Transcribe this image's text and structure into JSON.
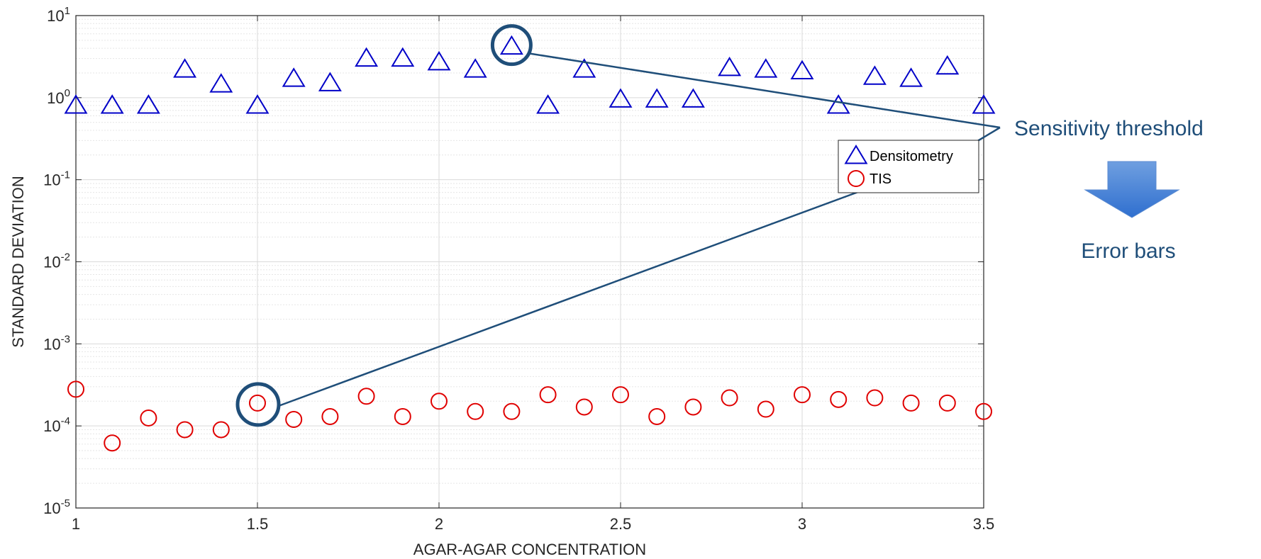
{
  "chart_data": {
    "type": "scatter",
    "xlabel": "AGAR-AGAR CONCENTRATION",
    "ylabel": "STANDARD DEVIATION",
    "xlim": [
      1,
      3.5
    ],
    "ylim": [
      1e-05,
      10
    ],
    "yscale": "log",
    "grid": true,
    "legend_position": "right",
    "x_ticks": [
      "1",
      "1.5",
      "2",
      "2.5",
      "3",
      "3.5"
    ],
    "y_ticks": [
      {
        "base": "10",
        "exp": "1"
      },
      {
        "base": "10",
        "exp": "0"
      },
      {
        "base": "10",
        "exp": "-1"
      },
      {
        "base": "10",
        "exp": "-2"
      },
      {
        "base": "10",
        "exp": "-3"
      },
      {
        "base": "10",
        "exp": "-4"
      },
      {
        "base": "10",
        "exp": "-5"
      }
    ],
    "series": [
      {
        "name": "Densitometry",
        "marker": "triangle",
        "color": "#0000c8",
        "x": [
          1.0,
          1.1,
          1.2,
          1.3,
          1.4,
          1.5,
          1.6,
          1.7,
          1.8,
          1.9,
          2.0,
          2.1,
          2.2,
          2.3,
          2.4,
          2.5,
          2.6,
          2.7,
          2.8,
          2.9,
          3.0,
          3.1,
          3.2,
          3.3,
          3.4,
          3.5
        ],
        "y": [
          0.8,
          0.8,
          0.8,
          2.2,
          1.45,
          0.8,
          1.7,
          1.5,
          3.0,
          3.0,
          2.7,
          2.2,
          4.2,
          0.8,
          2.2,
          0.95,
          0.95,
          0.95,
          2.3,
          2.2,
          2.1,
          0.8,
          1.8,
          1.7,
          2.4,
          0.8
        ]
      },
      {
        "name": "TIS",
        "marker": "circle",
        "color": "#e00000",
        "x": [
          1.0,
          1.1,
          1.2,
          1.3,
          1.4,
          1.5,
          1.6,
          1.7,
          1.8,
          1.9,
          2.0,
          2.1,
          2.2,
          2.3,
          2.4,
          2.5,
          2.6,
          2.7,
          2.8,
          2.9,
          3.0,
          3.1,
          3.2,
          3.3,
          3.4,
          3.5
        ],
        "y": [
          0.00028,
          6.2e-05,
          0.000125,
          9e-05,
          9e-05,
          0.00019,
          0.00012,
          0.00013,
          0.00023,
          0.00013,
          0.0002,
          0.00015,
          0.00015,
          0.00024,
          0.00017,
          0.00024,
          0.00013,
          0.00017,
          0.00022,
          0.00016,
          0.00024,
          0.00021,
          0.00022,
          0.00019,
          0.00019,
          0.00015
        ]
      }
    ],
    "highlighted_points": [
      {
        "series": "Densitometry",
        "x": 2.2,
        "y": 4.2
      },
      {
        "series": "TIS",
        "x": 1.5,
        "y": 0.00019
      }
    ],
    "annotations": {
      "threshold_label": "Sensitivity threshold",
      "result_label": "Error bars",
      "accent_color": "#1f4e79"
    }
  }
}
